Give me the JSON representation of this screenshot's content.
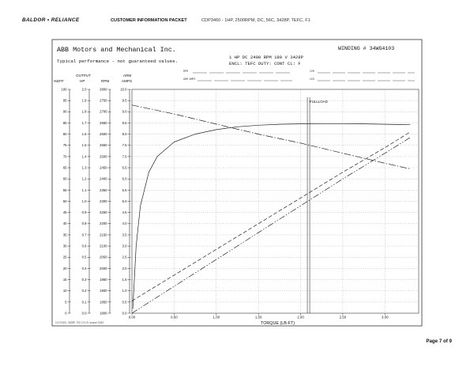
{
  "header": {
    "logo": "BALDOR • RELIANCE",
    "packet": "CUSTOMER INFORMATION PACKET",
    "product": "CDP3460 - 1HP, 2500RPM, DC, 56C, 3428P, TEFC, F1"
  },
  "sheet": {
    "company": "ABB Motors and Mechanical Inc.",
    "winding": "WINDING # 34WG4103",
    "disclaimer": "Typical performance - not guaranteed values.",
    "spec_line1": "1 HP  DC  2400 RPM  180 V  3428P",
    "spec_line2": "ENCL: TEFC  DUTY: CONT  CL: F",
    "rpm_label": "RPM",
    "arm_amps_label": "ARM AMPS",
    "ir_label": "I2R",
    "leg_label": "LEG",
    "footnote": "1/17/2021, 3428P, 700 2.3.19, source 1533",
    "axis_headers": {
      "eff": "%EFF",
      "hp": "OUTPUT\nHP",
      "rpm": "RPM",
      "amps": "ARM\nAMPS"
    },
    "fullload_label": "FULLLOAD"
  },
  "chart_data": {
    "type": "line",
    "xlabel": "TORQUE (LB-FT)",
    "xlim": [
      0,
      3.4
    ],
    "x_ticks": [
      "0.00",
      "0.50",
      "1.00",
      "1.50",
      "2.00",
      "2.50",
      "3.00"
    ],
    "eff_ticks": [
      "0",
      "5",
      "10",
      "15",
      "20",
      "25",
      "30",
      "35",
      "40",
      "45",
      "50",
      "55",
      "60",
      "65",
      "70",
      "75",
      "80",
      "85",
      "90",
      "95",
      "100"
    ],
    "hp_ticks": [
      "0.0",
      "0.1",
      "0.2",
      "0.3",
      "0.4",
      "0.5",
      "0.6",
      "0.7",
      "0.8",
      "0.9",
      "1.0",
      "1.1",
      "1.2",
      "1.3",
      "1.4",
      "1.5",
      "1.6",
      "1.7",
      "1.8",
      "1.9",
      "2.0"
    ],
    "rpm_ticks": [
      "1800",
      "1850",
      "1900",
      "1950",
      "2000",
      "2050",
      "2100",
      "2150",
      "2200",
      "2250",
      "2300",
      "2350",
      "2400",
      "2450",
      "2500",
      "2550",
      "2600",
      "2650",
      "2700",
      "2750",
      "2800"
    ],
    "amps_ticks": [
      "0.0",
      "0.5",
      "1.0",
      "1.5",
      "2.0",
      "2.5",
      "3.0",
      "3.5",
      "4.0",
      "4.5",
      "5.0",
      "5.5",
      "6.0",
      "6.5",
      "7.0",
      "7.5",
      "8.0",
      "8.5",
      "9.0",
      "9.5",
      "10.0"
    ],
    "full_load_torque": 2.08,
    "series": [
      {
        "name": "",
        "scale": "eff",
        "style": "solid",
        "x": [
          0.01,
          0.05,
          0.1,
          0.2,
          0.3,
          0.5,
          0.75,
          1.0,
          1.25,
          1.5,
          1.75,
          2.0,
          2.25,
          2.5,
          2.75,
          3.0,
          3.3
        ],
        "y": [
          2,
          30,
          48,
          63,
          70,
          76.5,
          80,
          82,
          83.3,
          84,
          84.4,
          84.6,
          84.7,
          84.7,
          84.6,
          84.4,
          84.2
        ]
      },
      {
        "name": "",
        "scale": "rpm",
        "style": "dashdot",
        "x": [
          0,
          0.5,
          1.0,
          1.5,
          2.0,
          2.5,
          3.0,
          3.3
        ],
        "y": [
          2730,
          2690,
          2645,
          2600,
          2560,
          2515,
          2470,
          2445
        ]
      },
      {
        "name": "",
        "scale": "amps",
        "style": "dashed",
        "x": [
          0,
          0.5,
          1.0,
          1.5,
          2.0,
          2.5,
          3.0,
          3.3
        ],
        "y": [
          0.55,
          1.7,
          2.85,
          4.0,
          5.15,
          6.3,
          7.4,
          8.1
        ]
      },
      {
        "name": "",
        "scale": "hp",
        "style": "dashdotdot",
        "x": [
          0,
          0.5,
          1.0,
          1.5,
          2.0,
          2.5,
          3.0,
          3.3
        ],
        "y": [
          0.0,
          0.24,
          0.48,
          0.72,
          0.96,
          1.2,
          1.43,
          1.57
        ]
      }
    ]
  },
  "footer": {
    "page": "Page 7 of 9"
  }
}
